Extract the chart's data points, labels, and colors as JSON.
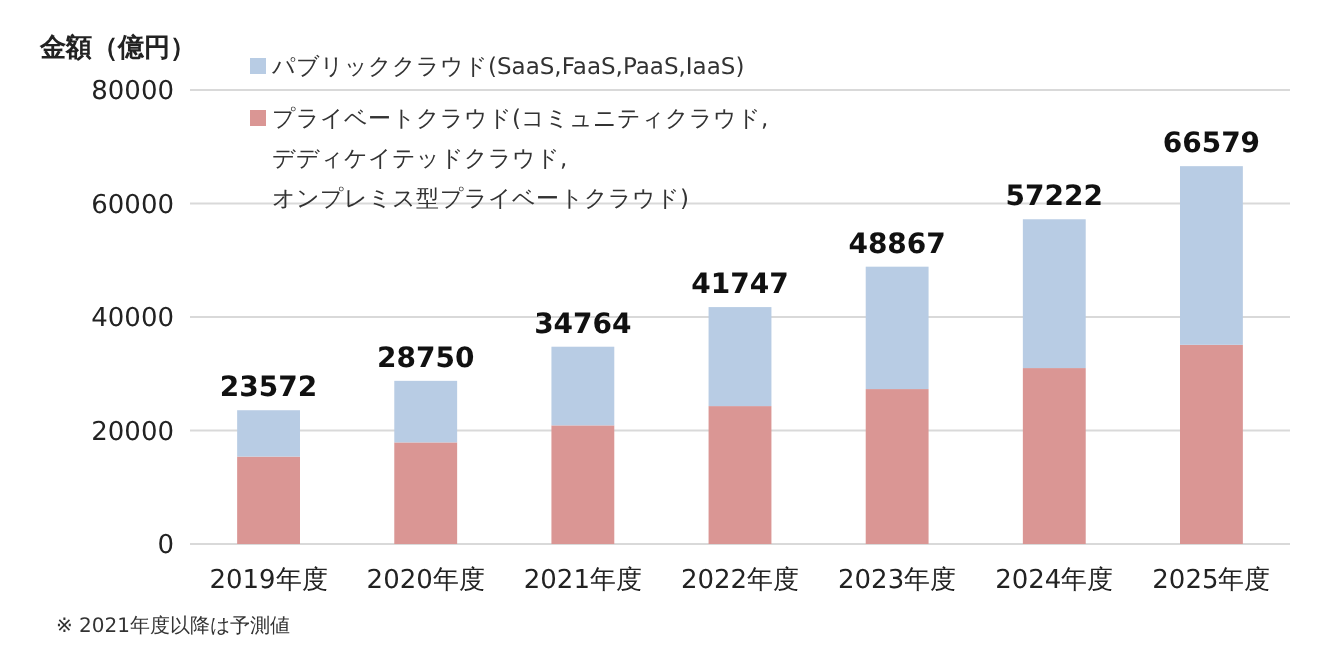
{
  "chart_data": {
    "type": "bar",
    "stacked": true,
    "ylabel": "金額（億円）",
    "categories": [
      "2019年度",
      "2020年度",
      "2021年度",
      "2022年度",
      "2023年度",
      "2024年度",
      "2025年度"
    ],
    "series": [
      {
        "name": "プライベートクラウド(コミュニティクラウド,デディケイテッドクラウド,オンプレミス型プライベートクラウド)",
        "color": "#da9694",
        "values": [
          15400,
          17900,
          20900,
          24300,
          27300,
          31000,
          35100
        ]
      },
      {
        "name": "パブリッククラウド(SaaS,FaaS,PaaS,IaaS)",
        "color": "#b8cce4",
        "values": [
          8172,
          10850,
          13864,
          17447,
          21567,
          26222,
          31479
        ]
      }
    ],
    "totals": [
      "23572",
      "28750",
      "34764",
      "41747",
      "48867",
      "57222",
      "66579"
    ],
    "ylim": [
      0,
      80000
    ],
    "yticks": [
      0,
      20000,
      40000,
      60000,
      80000
    ],
    "grid": "y",
    "legend": "top left",
    "annotations": [
      "※ 2021年度以降は予測値"
    ]
  }
}
